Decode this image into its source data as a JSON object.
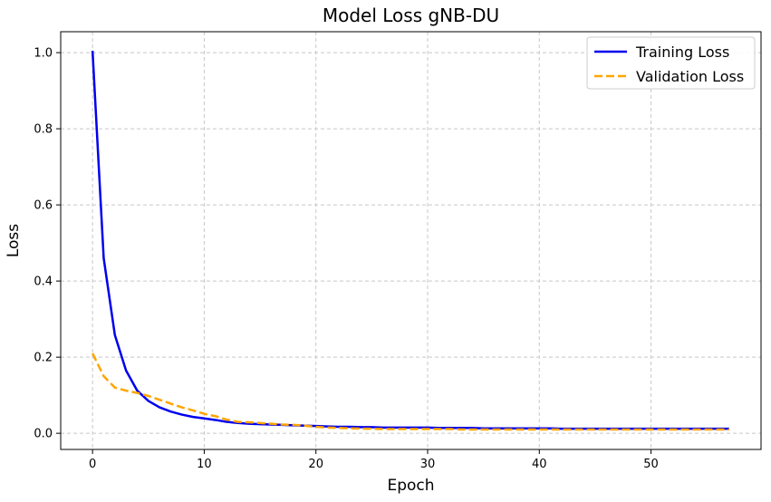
{
  "chart_data": {
    "type": "line",
    "title": "Model Loss gNB-DU",
    "xlabel": "Epoch",
    "ylabel": "Loss",
    "xlim": [
      -2.85,
      59.85
    ],
    "ylim": [
      -0.0425,
      1.055
    ],
    "xticks": [
      0,
      10,
      20,
      30,
      40,
      50
    ],
    "yticks": [
      0.0,
      0.2,
      0.4,
      0.6,
      0.8,
      1.0
    ],
    "xtick_labels": [
      "0",
      "10",
      "20",
      "30",
      "40",
      "50"
    ],
    "ytick_labels": [
      "0.0",
      "0.2",
      "0.4",
      "0.6",
      "0.8",
      "1.0"
    ],
    "grid": true,
    "legend_position": "top-right",
    "x": [
      0,
      1,
      2,
      3,
      4,
      5,
      6,
      7,
      8,
      9,
      10,
      11,
      12,
      13,
      14,
      15,
      16,
      17,
      18,
      19,
      20,
      21,
      22,
      23,
      24,
      25,
      26,
      27,
      28,
      29,
      30,
      31,
      32,
      33,
      34,
      35,
      36,
      37,
      38,
      39,
      40,
      41,
      42,
      43,
      44,
      45,
      46,
      47,
      48,
      49,
      50,
      51,
      52,
      53,
      54,
      55,
      56,
      57
    ],
    "series": [
      {
        "name": "Training Loss",
        "color": "#0000ee",
        "style": "solid",
        "values": [
          1.005,
          0.46,
          0.258,
          0.165,
          0.112,
          0.085,
          0.068,
          0.057,
          0.049,
          0.043,
          0.039,
          0.035,
          0.03,
          0.027,
          0.025,
          0.024,
          0.023,
          0.022,
          0.021,
          0.02,
          0.019,
          0.018,
          0.017,
          0.017,
          0.016,
          0.016,
          0.015,
          0.015,
          0.015,
          0.015,
          0.015,
          0.014,
          0.014,
          0.014,
          0.014,
          0.013,
          0.013,
          0.013,
          0.013,
          0.013,
          0.013,
          0.013,
          0.012,
          0.012,
          0.012,
          0.012,
          0.012,
          0.012,
          0.012,
          0.012,
          0.012,
          0.012,
          0.012,
          0.012,
          0.012,
          0.012,
          0.012,
          0.012
        ]
      },
      {
        "name": "Validation Loss",
        "color": "#ffa500",
        "style": "dashed",
        "values": [
          0.21,
          0.15,
          0.12,
          0.112,
          0.106,
          0.098,
          0.088,
          0.078,
          0.068,
          0.06,
          0.051,
          0.045,
          0.036,
          0.03,
          0.029,
          0.027,
          0.025,
          0.023,
          0.022,
          0.02,
          0.017,
          0.015,
          0.014,
          0.013,
          0.012,
          0.012,
          0.011,
          0.011,
          0.011,
          0.011,
          0.011,
          0.011,
          0.011,
          0.01,
          0.01,
          0.01,
          0.01,
          0.01,
          0.01,
          0.01,
          0.01,
          0.01,
          0.01,
          0.01,
          0.01,
          0.01,
          0.01,
          0.01,
          0.01,
          0.01,
          0.01,
          0.01,
          0.01,
          0.01,
          0.01,
          0.01,
          0.01,
          0.01
        ]
      }
    ]
  }
}
